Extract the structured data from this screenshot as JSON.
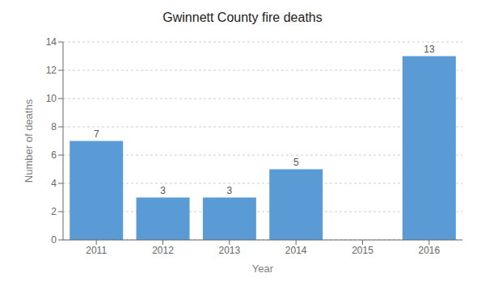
{
  "chart_data": {
    "type": "bar",
    "title": "Gwinnett County fire deaths",
    "xlabel": "Year",
    "ylabel": "Number of deaths",
    "categories": [
      "2011",
      "2012",
      "2013",
      "2014",
      "2015",
      "2016"
    ],
    "values": [
      7,
      3,
      3,
      5,
      0,
      13
    ],
    "color": "#5b9bd5",
    "ylim": [
      0,
      14
    ],
    "yticks": [
      0,
      2,
      4,
      6,
      8,
      10,
      12,
      14
    ],
    "grid": true,
    "data_labels": true
  }
}
